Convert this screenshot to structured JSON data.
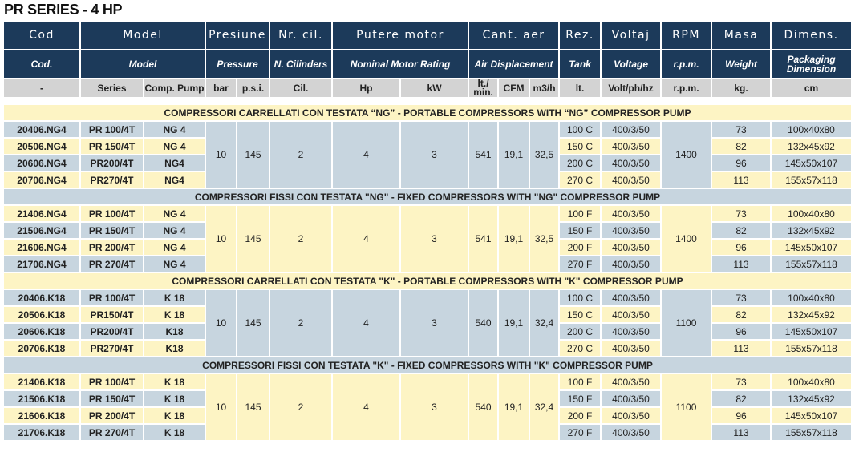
{
  "title": "PR SERIES - 4 HP",
  "header": {
    "row1": [
      "Cod",
      "Model",
      "Presiune",
      "Nr. cil.",
      "Putere motor",
      "Cant. aer",
      "Rez.",
      "Voltaj",
      "RPM",
      "Masa",
      "Dimens."
    ],
    "row2": [
      "Cod.",
      "Model",
      "Pressure",
      "N. Cilinders",
      "Nominal Motor Rating",
      "Air Displacement",
      "Tank",
      "Voltage",
      "r.p.m.",
      "Weight",
      "Packaging Dimension"
    ],
    "units": [
      "-",
      "Series",
      "Comp. Pump",
      "bar",
      "p.s.i.",
      "Cil.",
      "Hp",
      "kW",
      "lt./ min.",
      "CFM",
      "m3/h",
      "lt.",
      "Volt/ph/hz",
      "r.p.m.",
      "kg.",
      "cm"
    ]
  },
  "colors": {
    "header": "#1c3a5a",
    "units": "#d3d3d3",
    "yellow": "#fdf4c4",
    "blue": "#c7d5df"
  },
  "groups": [
    {
      "title": "COMPRESSORI CARRELLATI CON TESTATA “NG” - PORTABLE COMPRESSORS WITH “NG” COMPRESSOR PUMP",
      "shared": {
        "bar": "10",
        "psi": "145",
        "cil": "2",
        "hp": "4",
        "kw": "3",
        "lmin": "541",
        "cfm": "19,1",
        "m3h": "32,5",
        "rpm": "1400"
      },
      "rows": [
        {
          "cod": "20406.NG4",
          "series": "PR 100/4T",
          "pump": "NG 4",
          "tank": "100 C",
          "volt": "400/3/50",
          "kg": "73",
          "dim": "100x40x80"
        },
        {
          "cod": "20506.NG4",
          "series": "PR 150/4T",
          "pump": "NG 4",
          "tank": "150 C",
          "volt": "400/3/50",
          "kg": "82",
          "dim": "132x45x92"
        },
        {
          "cod": "20606.NG4",
          "series": "PR200/4T",
          "pump": "NG4",
          "tank": "200 C",
          "volt": "400/3/50",
          "kg": "96",
          "dim": "145x50x107"
        },
        {
          "cod": "20706.NG4",
          "series": "PR270/4T",
          "pump": "NG4",
          "tank": "270 C",
          "volt": "400/3/50",
          "kg": "113",
          "dim": "155x57x118"
        }
      ]
    },
    {
      "title": "COMPRESSORI FISSI CON TESTATA \"NG\" - FIXED COMPRESSORS WITH \"NG\" COMPRESSOR PUMP",
      "shared": {
        "bar": "10",
        "psi": "145",
        "cil": "2",
        "hp": "4",
        "kw": "3",
        "lmin": "541",
        "cfm": "19,1",
        "m3h": "32,5",
        "rpm": "1400"
      },
      "rows": [
        {
          "cod": "21406.NG4",
          "series": "PR 100/4T",
          "pump": "NG 4",
          "tank": "100 F",
          "volt": "400/3/50",
          "kg": "73",
          "dim": "100x40x80"
        },
        {
          "cod": "21506.NG4",
          "series": "PR 150/4T",
          "pump": "NG 4",
          "tank": "150 F",
          "volt": "400/3/50",
          "kg": "82",
          "dim": "132x45x92"
        },
        {
          "cod": "21606.NG4",
          "series": "PR 200/4T",
          "pump": "NG 4",
          "tank": "200 F",
          "volt": "400/3/50",
          "kg": "96",
          "dim": "145x50x107"
        },
        {
          "cod": "21706.NG4",
          "series": "PR 270/4T",
          "pump": "NG 4",
          "tank": "270 F",
          "volt": "400/3/50",
          "kg": "113",
          "dim": "155x57x118"
        }
      ]
    },
    {
      "title": "COMPRESSORI CARRELLATI CON TESTATA \"K\" - PORTABLE COMPRESSORS WITH \"K\" COMPRESSOR PUMP",
      "shared": {
        "bar": "10",
        "psi": "145",
        "cil": "2",
        "hp": "4",
        "kw": "3",
        "lmin": "540",
        "cfm": "19,1",
        "m3h": "32,4",
        "rpm": "1100"
      },
      "rows": [
        {
          "cod": "20406.K18",
          "series": "PR 100/4T",
          "pump": "K 18",
          "tank": "100 C",
          "volt": "400/3/50",
          "kg": "73",
          "dim": "100x40x80"
        },
        {
          "cod": "20506.K18",
          "series": "PR150/4T",
          "pump": "K 18",
          "tank": "150 C",
          "volt": "400/3/50",
          "kg": "82",
          "dim": "132x45x92"
        },
        {
          "cod": "20606.K18",
          "series": "PR200/4T",
          "pump": "K18",
          "tank": "200 C",
          "volt": "400/3/50",
          "kg": "96",
          "dim": "145x50x107"
        },
        {
          "cod": "20706.K18",
          "series": "PR270/4T",
          "pump": "K18",
          "tank": "270 C",
          "volt": "400/3/50",
          "kg": "113",
          "dim": "155x57x118"
        }
      ]
    },
    {
      "title": "COMPRESSORI FISSI CON TESTATA \"K\" - FIXED COMPRESSORS WITH \"K\" COMPRESSOR PUMP",
      "shared": {
        "bar": "10",
        "psi": "145",
        "cil": "2",
        "hp": "4",
        "kw": "3",
        "lmin": "540",
        "cfm": "19,1",
        "m3h": "32,4",
        "rpm": "1100"
      },
      "rows": [
        {
          "cod": "21406.K18",
          "series": "PR 100/4T",
          "pump": "K 18",
          "tank": "100 F",
          "volt": "400/3/50",
          "kg": "73",
          "dim": "100x40x80"
        },
        {
          "cod": "21506.K18",
          "series": "PR 150/4T",
          "pump": "K 18",
          "tank": "150 F",
          "volt": "400/3/50",
          "kg": "82",
          "dim": "132x45x92"
        },
        {
          "cod": "21606.K18",
          "series": "PR 200/4T",
          "pump": "K 18",
          "tank": "200 F",
          "volt": "400/3/50",
          "kg": "96",
          "dim": "145x50x107"
        },
        {
          "cod": "21706.K18",
          "series": "PR 270/4T",
          "pump": "K 18",
          "tank": "270 F",
          "volt": "400/3/50",
          "kg": "113",
          "dim": "155x57x118"
        }
      ]
    }
  ]
}
